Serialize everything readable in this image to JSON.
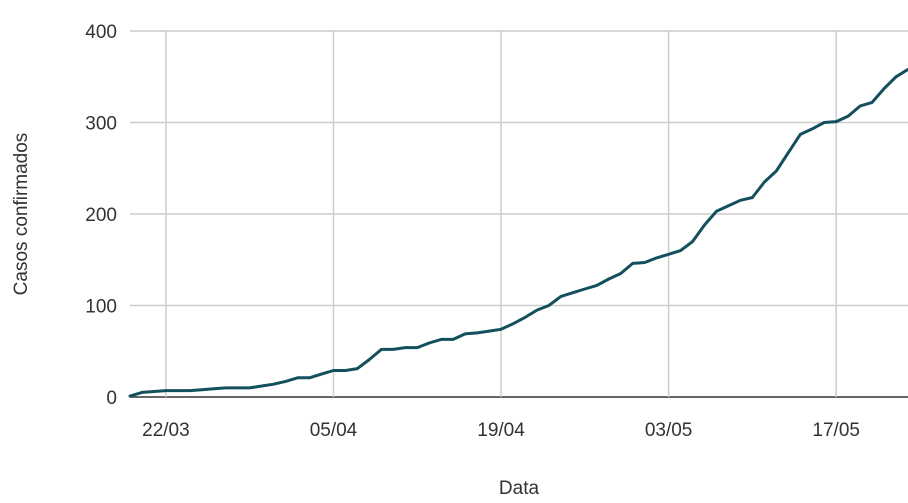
{
  "chart_data": {
    "type": "line",
    "xlabel": "Data",
    "ylabel": "Casos confirmados",
    "ylim": [
      0,
      400
    ],
    "yticks": [
      0,
      100,
      200,
      300,
      400
    ],
    "xticks": [
      "22/03",
      "05/04",
      "19/04",
      "03/05",
      "17/05"
    ],
    "x_start": "2020-03-19",
    "x_end": "2020-05-23",
    "grid": true,
    "legend": "none",
    "series_color": "#134f5c",
    "series": [
      {
        "x": [
          "2020-03-19",
          "2020-03-20",
          "2020-03-21",
          "2020-03-22",
          "2020-03-23",
          "2020-03-24",
          "2020-03-25",
          "2020-03-26",
          "2020-03-27",
          "2020-03-28",
          "2020-03-29",
          "2020-03-30",
          "2020-03-31",
          "2020-04-01",
          "2020-04-02",
          "2020-04-03",
          "2020-04-04",
          "2020-04-05",
          "2020-04-06",
          "2020-04-07",
          "2020-04-08",
          "2020-04-09",
          "2020-04-10",
          "2020-04-11",
          "2020-04-12",
          "2020-04-13",
          "2020-04-14",
          "2020-04-15",
          "2020-04-16",
          "2020-04-17",
          "2020-04-18",
          "2020-04-19",
          "2020-04-20",
          "2020-04-21",
          "2020-04-22",
          "2020-04-23",
          "2020-04-24",
          "2020-04-25",
          "2020-04-26",
          "2020-04-27",
          "2020-04-28",
          "2020-04-29",
          "2020-04-30",
          "2020-05-01",
          "2020-05-02",
          "2020-05-03",
          "2020-05-04",
          "2020-05-05",
          "2020-05-06",
          "2020-05-07",
          "2020-05-08",
          "2020-05-09",
          "2020-05-10",
          "2020-05-11",
          "2020-05-12",
          "2020-05-13",
          "2020-05-14",
          "2020-05-15",
          "2020-05-16",
          "2020-05-17",
          "2020-05-18",
          "2020-05-19",
          "2020-05-20",
          "2020-05-21",
          "2020-05-22",
          "2020-05-23"
        ],
        "y": [
          1,
          5,
          6,
          7,
          7,
          7,
          8,
          9,
          10,
          10,
          10,
          12,
          14,
          17,
          21,
          21,
          25,
          29,
          29,
          31,
          41,
          52,
          52,
          54,
          54,
          59,
          63,
          63,
          69,
          70,
          72,
          74,
          80,
          87,
          95,
          100,
          110,
          114,
          118,
          122,
          129,
          135,
          146,
          147,
          152,
          156,
          160,
          170,
          188,
          203,
          209,
          215,
          218,
          235,
          247,
          267,
          287,
          293,
          300,
          301,
          307,
          318,
          322,
          337,
          350,
          358
        ]
      }
    ]
  }
}
